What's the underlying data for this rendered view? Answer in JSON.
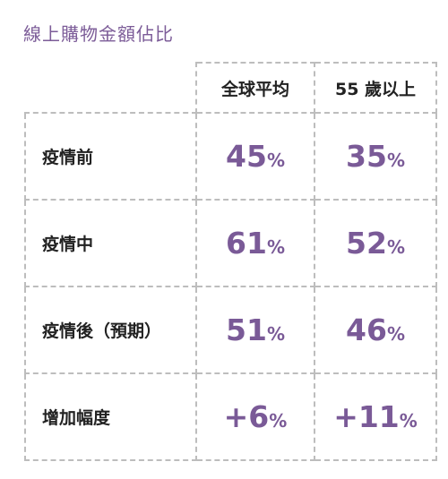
{
  "page_title": "線上購物金額佔比",
  "accent_color": "#7a5a97",
  "header": {
    "columns": [
      "全球平均",
      "55 歲以上"
    ]
  },
  "chart_data": {
    "type": "table",
    "title": "線上購物金額佔比",
    "columns": [
      "全球平均",
      "55 歲以上"
    ],
    "unit": "%",
    "rows": [
      {
        "label": "疫情前",
        "values": [
          "45",
          "35"
        ]
      },
      {
        "label": "疫情中",
        "values": [
          "61",
          "52"
        ]
      },
      {
        "label": "疫情後（預期）",
        "values": [
          "51",
          "46"
        ]
      },
      {
        "label": "增加幅度",
        "values": [
          "+6",
          "+11"
        ]
      }
    ]
  }
}
